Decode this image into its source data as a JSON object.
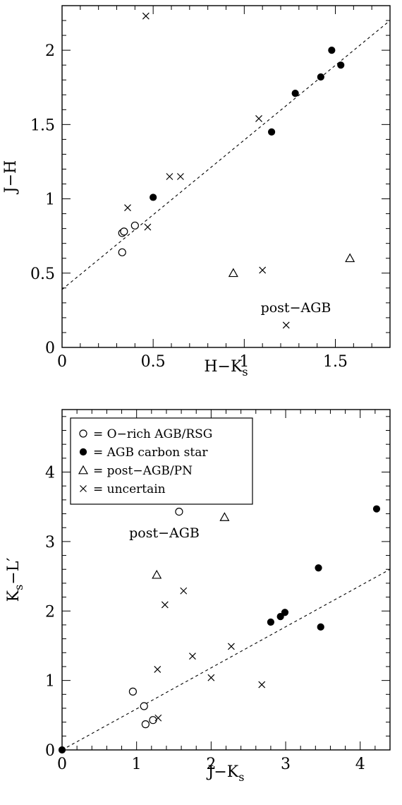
{
  "chart_data": [
    {
      "type": "scatter",
      "xlabel": "H−K",
      "xlabel_sub": "s",
      "ylabel": "J−H",
      "xlim": [
        0,
        1.8
      ],
      "ylim": [
        0,
        2.3
      ],
      "xticks": [
        0,
        0.5,
        1,
        1.5
      ],
      "xtick_labels": [
        "0",
        "0.5",
        "1",
        "1.5"
      ],
      "yticks": [
        0,
        0.5,
        1,
        1.5,
        2
      ],
      "ytick_labels": [
        "0",
        "0.5",
        "1",
        "1.5",
        "2"
      ],
      "annotations": [
        {
          "text": "post−AGB",
          "x": 1.09,
          "y": 0.27
        }
      ],
      "fit_line": {
        "style": "dashed",
        "points": [
          [
            0,
            0.39
          ],
          [
            1.8,
            2.2
          ]
        ]
      },
      "series": [
        {
          "marker": "open-circle",
          "points": [
            [
              0.33,
              0.64
            ],
            [
              0.33,
              0.77
            ],
            [
              0.34,
              0.78
            ],
            [
              0.4,
              0.82
            ]
          ]
        },
        {
          "marker": "filled-circle",
          "points": [
            [
              0.5,
              1.01
            ],
            [
              1.15,
              1.45
            ],
            [
              1.28,
              1.71
            ],
            [
              1.42,
              1.82
            ],
            [
              1.48,
              2.0
            ],
            [
              1.53,
              1.9
            ]
          ]
        },
        {
          "marker": "open-triangle",
          "points": [
            [
              0.94,
              0.5
            ],
            [
              1.58,
              0.6
            ]
          ]
        },
        {
          "marker": "cross",
          "points": [
            [
              0.46,
              2.23
            ],
            [
              0.36,
              0.94
            ],
            [
              0.47,
              0.81
            ],
            [
              0.59,
              1.15
            ],
            [
              0.65,
              1.15
            ],
            [
              1.08,
              1.54
            ],
            [
              1.1,
              0.52
            ],
            [
              1.23,
              0.15
            ]
          ]
        }
      ]
    },
    {
      "type": "scatter",
      "xlabel": "J−K",
      "xlabel_sub": "s",
      "ylabel": "K",
      "ylabel_sub": "s",
      "ylabel_suffix": "−L′",
      "xlim": [
        0,
        4.4
      ],
      "ylim": [
        0,
        4.9
      ],
      "xticks": [
        0,
        1,
        2,
        3,
        4
      ],
      "xtick_labels": [
        "0",
        "1",
        "2",
        "3",
        "4"
      ],
      "yticks": [
        0,
        1,
        2,
        3,
        4
      ],
      "ytick_labels": [
        "0",
        "1",
        "2",
        "3",
        "4"
      ],
      "annotations": [
        {
          "text": "post−AGB",
          "x": 0.9,
          "y": 3.13
        }
      ],
      "fit_line": {
        "style": "dashed",
        "points": [
          [
            0,
            0
          ],
          [
            4.4,
            2.6
          ]
        ]
      },
      "legend": {
        "placement": "top-left",
        "entries": [
          {
            "marker": "open-circle",
            "label": "= O−rich AGB/RSG"
          },
          {
            "marker": "filled-circle",
            "label": "= AGB carbon star"
          },
          {
            "marker": "open-triangle",
            "label": "= post−AGB/PN"
          },
          {
            "marker": "cross",
            "label": "= uncertain"
          }
        ]
      },
      "series": [
        {
          "marker": "open-circle",
          "points": [
            [
              0.95,
              0.84
            ],
            [
              1.1,
              0.63
            ],
            [
              1.12,
              0.37
            ],
            [
              1.22,
              0.43
            ],
            [
              1.57,
              3.43
            ]
          ]
        },
        {
          "marker": "filled-circle",
          "points": [
            [
              0.0,
              0.0
            ],
            [
              2.8,
              1.84
            ],
            [
              2.93,
              1.92
            ],
            [
              2.99,
              1.98
            ],
            [
              3.44,
              2.62
            ],
            [
              3.47,
              1.77
            ],
            [
              4.22,
              3.47
            ]
          ]
        },
        {
          "marker": "open-triangle",
          "points": [
            [
              1.27,
              2.52
            ],
            [
              2.18,
              3.35
            ]
          ]
        },
        {
          "marker": "cross",
          "points": [
            [
              1.28,
              1.16
            ],
            [
              1.29,
              0.46
            ],
            [
              1.38,
              2.09
            ],
            [
              1.63,
              2.29
            ],
            [
              1.75,
              1.35
            ],
            [
              2.0,
              1.04
            ],
            [
              2.27,
              1.49
            ],
            [
              2.68,
              0.94
            ]
          ]
        }
      ]
    }
  ]
}
